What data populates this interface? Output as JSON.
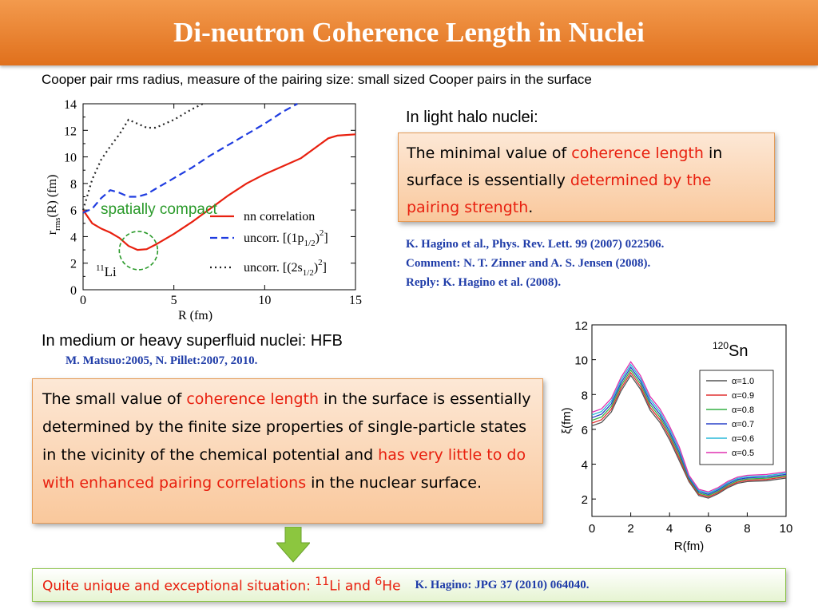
{
  "title": "Di-neutron Coherence Length in Nuclei",
  "subtitle": "Cooper pair rms radius, measure of the pairing size: small sized Cooper pairs in the surface",
  "light_halo": {
    "heading": "In light halo nuclei:",
    "box": {
      "t1": "The minimal value of ",
      "r1": "coherence length",
      "t2": " in surface is essentially ",
      "r2": "determined by the pairing strength",
      "t3": "."
    },
    "refs": [
      "K. Hagino et al., Phys. Rev. Lett. 99 (2007) 022506.",
      "Comment: N. T. Zinner and A. S. Jensen (2008).",
      "Reply: K. Hagino et al. (2008)."
    ]
  },
  "medium": {
    "heading": "In medium or heavy superfluid nuclei: HFB",
    "ref": "M. Matsuo:2005, N. Pillet:2007, 2010.",
    "box": {
      "t1": "The small value of ",
      "r1": "coherence length",
      "t2": " in the surface is essentially determined by the finite size properties of single-particle states in the vicinity of the chemical potential and ",
      "r2": "has very little to do with enhanced pairing correlations",
      "t3": " in the nuclear surface."
    }
  },
  "bottom": {
    "text_pre": "Quite unique and exceptional situation: ",
    "sup1": "11",
    "mid1": "Li and ",
    "sup2": "6",
    "mid2": "He",
    "ref": "K. Hagino: JPG 37 (2010) 064040."
  },
  "chart_data": [
    {
      "type": "line",
      "xlabel": "R   (fm)",
      "ylabel": "rms",
      "xlim": [
        0,
        15
      ],
      "ylim": [
        0,
        14
      ],
      "x_ticks": [
        "0",
        "5",
        "10",
        "15"
      ],
      "y_ticks": [
        "0",
        "2",
        "4",
        "6",
        "8",
        "10",
        "12",
        "14"
      ],
      "annotation": "spatially compact",
      "nucleus_label": "Li",
      "nucleus_mass": "11",
      "series": [
        {
          "name": "nn correlation",
          "color": "#e8200f",
          "dash": "solid",
          "x": [
            0,
            0.5,
            1,
            1.5,
            2,
            2.5,
            3,
            3.5,
            4,
            5,
            6,
            7,
            8,
            9,
            10,
            11,
            12,
            13,
            13.5,
            14,
            15
          ],
          "y": [
            6.0,
            5.0,
            4.6,
            4.3,
            3.9,
            3.3,
            3.0,
            3.05,
            3.4,
            4.2,
            5.1,
            6.1,
            7.1,
            8.0,
            8.7,
            9.3,
            9.9,
            10.9,
            11.4,
            11.6,
            11.7
          ]
        },
        {
          "name": "uncorr. [(1p1/2)2]",
          "color": "#1f3ce0",
          "dash": "dashed",
          "x": [
            0,
            0.5,
            1,
            1.5,
            2,
            2.5,
            3,
            3.5,
            4,
            5,
            6,
            7,
            8,
            9,
            10,
            11,
            11.8
          ],
          "y": [
            5.8,
            6.1,
            6.9,
            7.5,
            7.3,
            7.0,
            7.0,
            7.2,
            7.6,
            8.4,
            9.2,
            10.1,
            10.9,
            11.7,
            12.5,
            13.4,
            14.0
          ]
        },
        {
          "name": "uncorr. [(2s1/2)2]",
          "color": "#222222",
          "dash": "dotted",
          "x": [
            0,
            0.5,
            1,
            1.5,
            2,
            2.5,
            3,
            3.5,
            4,
            5,
            6,
            6.6
          ],
          "y": [
            6.0,
            8.3,
            9.8,
            10.8,
            11.7,
            12.8,
            12.5,
            12.2,
            12.2,
            12.8,
            13.6,
            14.0
          ]
        }
      ]
    },
    {
      "type": "line",
      "title": "120Sn",
      "title_mass": "120",
      "title_elem": "Sn",
      "xlabel": "R(fm)",
      "ylabel": "ξ(fm)",
      "xlim": [
        0,
        10
      ],
      "ylim": [
        1,
        12
      ],
      "x_ticks": [
        "0",
        "2",
        "4",
        "6",
        "8",
        "10"
      ],
      "y_ticks": [
        "2",
        "4",
        "6",
        "8",
        "10",
        "12"
      ],
      "base_x": [
        0,
        0.5,
        1,
        1.5,
        2,
        2.5,
        3,
        3.5,
        4,
        4.5,
        5,
        5.5,
        6,
        6.5,
        7,
        7.5,
        8,
        9,
        10
      ],
      "base_y": [
        6.2,
        6.4,
        7.0,
        8.2,
        9.1,
        8.3,
        7.1,
        6.4,
        5.4,
        4.2,
        3.0,
        2.2,
        2.05,
        2.3,
        2.65,
        2.9,
        3.0,
        3.05,
        3.2
      ],
      "series": [
        {
          "name": "α=1.0",
          "color": "#555555",
          "offset": 0.0
        },
        {
          "name": "α=0.9",
          "color": "#e03030",
          "offset": 0.12
        },
        {
          "name": "α=0.8",
          "color": "#35b045",
          "offset": 0.24
        },
        {
          "name": "α=0.7",
          "color": "#2840c8",
          "offset": 0.36
        },
        {
          "name": "α=0.6",
          "color": "#28b8d8",
          "offset": 0.48
        },
        {
          "name": "α=0.5",
          "color": "#e030b0",
          "offset": 0.6
        }
      ]
    }
  ]
}
